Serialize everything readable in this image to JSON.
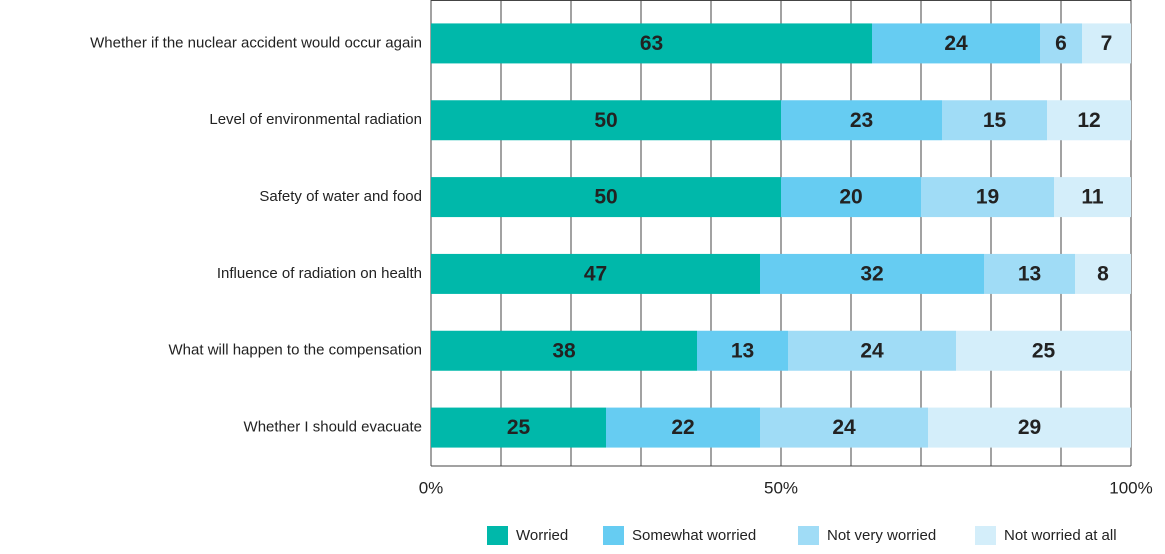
{
  "chart_data": {
    "type": "stacked_barh",
    "categories": [
      "Whether if the nuclear accident would occur again",
      "Level of environmental radiation",
      "Safety of water and food",
      "Influence of radiation on health",
      "What will happen to the compensation",
      "Whether I should evacuate"
    ],
    "series": [
      {
        "name": "Worried",
        "color": "#00b8aa",
        "values": [
          63,
          50,
          50,
          47,
          38,
          25
        ]
      },
      {
        "name": "Somewhat worried",
        "color": "#66ccf2",
        "values": [
          24,
          23,
          20,
          32,
          13,
          22
        ]
      },
      {
        "name": "Not very worried",
        "color": "#a0dcf6",
        "values": [
          6,
          15,
          19,
          13,
          24,
          24
        ]
      },
      {
        "name": "Not worried at all",
        "color": "#d4eefa",
        "values": [
          7,
          12,
          11,
          8,
          25,
          29
        ]
      }
    ],
    "xlim": [
      0,
      100
    ],
    "xticks": [
      {
        "value": 0,
        "label": "0%"
      },
      {
        "value": 50,
        "label": "50%"
      },
      {
        "value": 100,
        "label": "100%"
      }
    ],
    "xgrid": [
      0,
      10,
      20,
      30,
      40,
      50,
      60,
      70,
      80,
      90,
      100
    ],
    "legend": "bottom-right"
  }
}
